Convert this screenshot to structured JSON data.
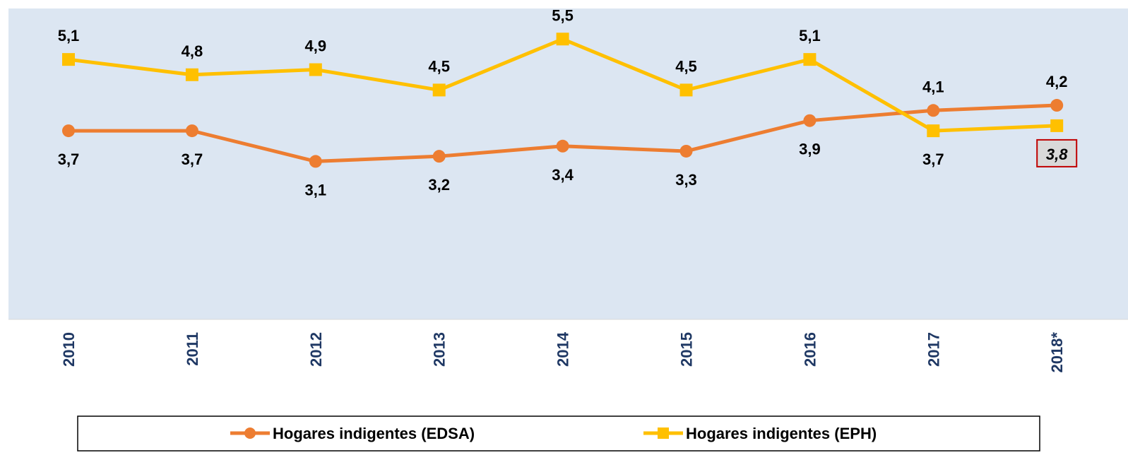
{
  "chart_data": {
    "type": "line",
    "categories": [
      "2010",
      "2011",
      "2012",
      "2013",
      "2014",
      "2015",
      "2016",
      "2017",
      "2018*"
    ],
    "series": [
      {
        "name": "Hogares indigentes (EDSA)",
        "color": "#ed7d31",
        "values": [
          3.7,
          3.7,
          3.1,
          3.2,
          3.4,
          3.3,
          3.9,
          4.1,
          4.2
        ],
        "value_labels": [
          "3,7",
          "3,7",
          "3,1",
          "3,2",
          "3,4",
          "3,3",
          "3,9",
          "4,1",
          "4,2"
        ]
      },
      {
        "name": "Hogares indigentes (EPH)",
        "color": "#ffc000",
        "values": [
          5.1,
          4.8,
          4.9,
          4.5,
          5.5,
          4.5,
          5.1,
          3.7,
          3.8
        ],
        "value_labels": [
          "5,1",
          "4,8",
          "4,9",
          "4,5",
          "5,5",
          "4,5",
          "5,1",
          "3,7",
          "3,8"
        ]
      }
    ],
    "ylim": [
      0,
      6.1
    ],
    "legend": "bottom"
  }
}
